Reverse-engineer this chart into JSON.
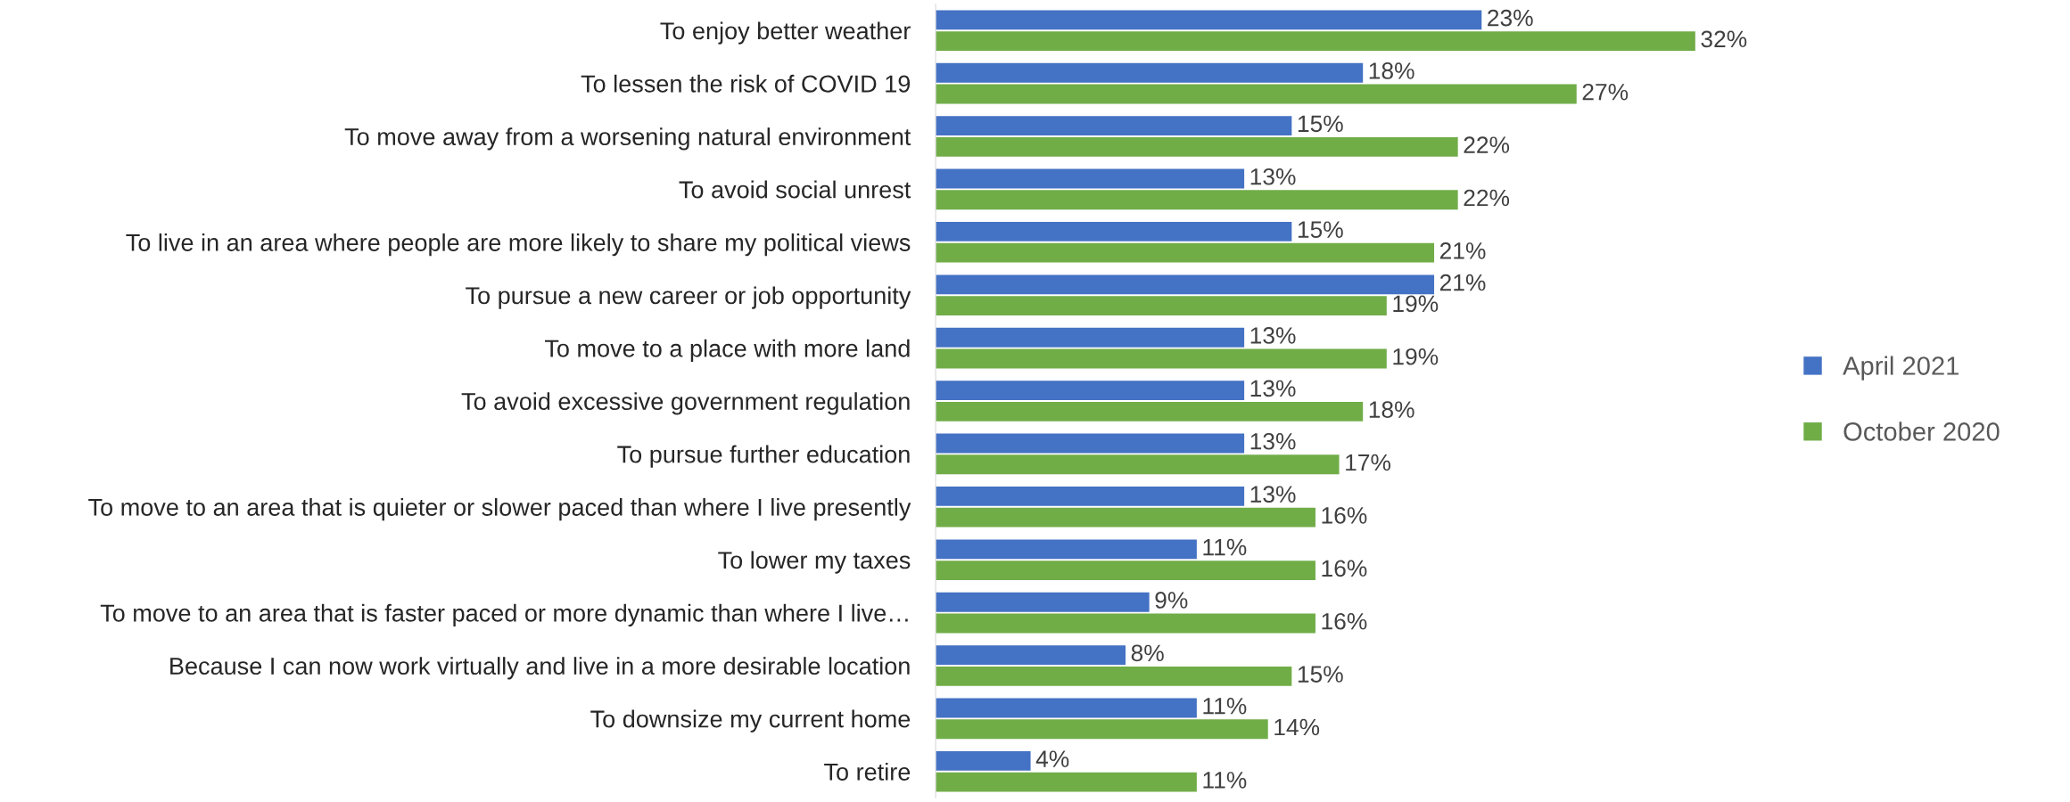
{
  "chart_data": {
    "type": "bar",
    "orientation": "horizontal",
    "legend": "right",
    "grid": false,
    "tick_labels": "y",
    "categories": [
      "To enjoy better weather",
      "To lessen the risk of COVID 19",
      "To move away from a worsening natural environment",
      "To avoid social unrest",
      "To live in an area where people are more likely to share my political views",
      "To pursue a new career or job opportunity",
      "To move to a place with more land",
      "To avoid excessive government regulation",
      "To pursue further education",
      "To move to an area that is quieter or slower paced than where I live presently",
      "To lower my taxes",
      "To move to an area that is faster paced or more dynamic than where I live…",
      "Because I can now work virtually and live in a more desirable location",
      "To downsize my current home",
      "To retire"
    ],
    "series": [
      {
        "name": "April 2021",
        "color": "#4472c4",
        "values": [
          23,
          18,
          15,
          13,
          15,
          21,
          13,
          13,
          13,
          13,
          11,
          9,
          8,
          11,
          4
        ],
        "value_labels": [
          "23%",
          "18%",
          "15%",
          "13%",
          "15%",
          "21%",
          "13%",
          "13%",
          "13%",
          "13%",
          "11%",
          "9%",
          "8%",
          "11%",
          "4%"
        ]
      },
      {
        "name": "October 2020",
        "color": "#70ad47",
        "values": [
          32,
          27,
          22,
          22,
          21,
          19,
          19,
          18,
          17,
          16,
          16,
          16,
          15,
          14,
          11
        ],
        "value_labels": [
          "32%",
          "27%",
          "22%",
          "22%",
          "21%",
          "19%",
          "19%",
          "18%",
          "17%",
          "16%",
          "16%",
          "16%",
          "15%",
          "14%",
          "11%"
        ]
      }
    ]
  }
}
